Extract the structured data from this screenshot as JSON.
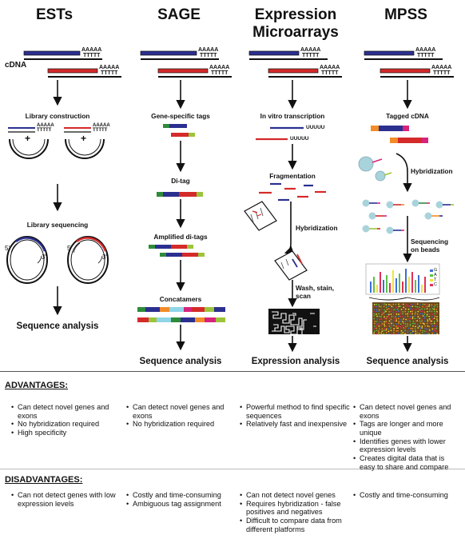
{
  "columns": [
    {
      "title": "ESTs",
      "steps": [
        "Library construction",
        "Library sequencing"
      ],
      "final": "Sequence analysis",
      "advantages": [
        "Can detect novel genes and exons",
        "No hybridization required",
        "High specificity"
      ],
      "disadvantages": [
        "Can not detect genes with low expression levels"
      ]
    },
    {
      "title": "SAGE",
      "steps": [
        "Gene-specific tags",
        "Di-tag",
        "Amplified di-tags",
        "Concatamers"
      ],
      "final": "Sequence analysis",
      "advantages": [
        "Can detect novel genes and exons",
        "No hybridization required"
      ],
      "disadvantages": [
        "Costly and time-consuming",
        "Ambiguous tag assignment"
      ]
    },
    {
      "title_lines": [
        "Expression",
        "Microarrays"
      ],
      "steps": [
        "In vitro transcription",
        "Fragmentation",
        "Hybridization",
        "Wash, stain,",
        "scan"
      ],
      "final": "Expression analysis",
      "advantages": [
        "Powerful method to find specific sequences",
        "Relatively fast and inexpensive"
      ],
      "disadvantages": [
        "Can not detect novel genes",
        "Requires hybridization - false positives and negatives",
        "Difficult to compare data from different platforms"
      ]
    },
    {
      "title": "MPSS",
      "steps": [
        "Tagged cDNA",
        "Hybridization",
        "Sequencing",
        "on beads"
      ],
      "final": "Sequence analysis",
      "advantages": [
        "Can detect novel genes and exons",
        "Tags are longer and more unique",
        "Identifies genes with lower expression levels",
        "Creates digital data that is easy to share and compare"
      ],
      "disadvantages": [
        "Costly and time-consuming"
      ]
    }
  ],
  "labels": {
    "cdna": "cDNA",
    "polyA": "AAAAA",
    "polyT": "TTTTT",
    "polyU": "UUUUU",
    "plus": "+",
    "five_prime": "5'",
    "three_prime": "3'",
    "bases": [
      "G",
      "A",
      "T",
      "C"
    ]
  },
  "sections": {
    "advantages": "ADVANTAGES:",
    "disadvantages": "DISADVANTAGES:"
  },
  "colors": {
    "dna_blue": "#2b2f8f",
    "dna_red": "#d42a2a",
    "tag_green": "#2e8b3a",
    "tag_lime": "#9cc43a",
    "tag_orange": "#f28c28",
    "tag_magenta": "#d6247a",
    "bead": "#a9d3dc",
    "base_g": "#3a6fd8",
    "base_a": "#5cc04a",
    "base_t": "#f2e13a",
    "base_c": "#e0305a"
  }
}
